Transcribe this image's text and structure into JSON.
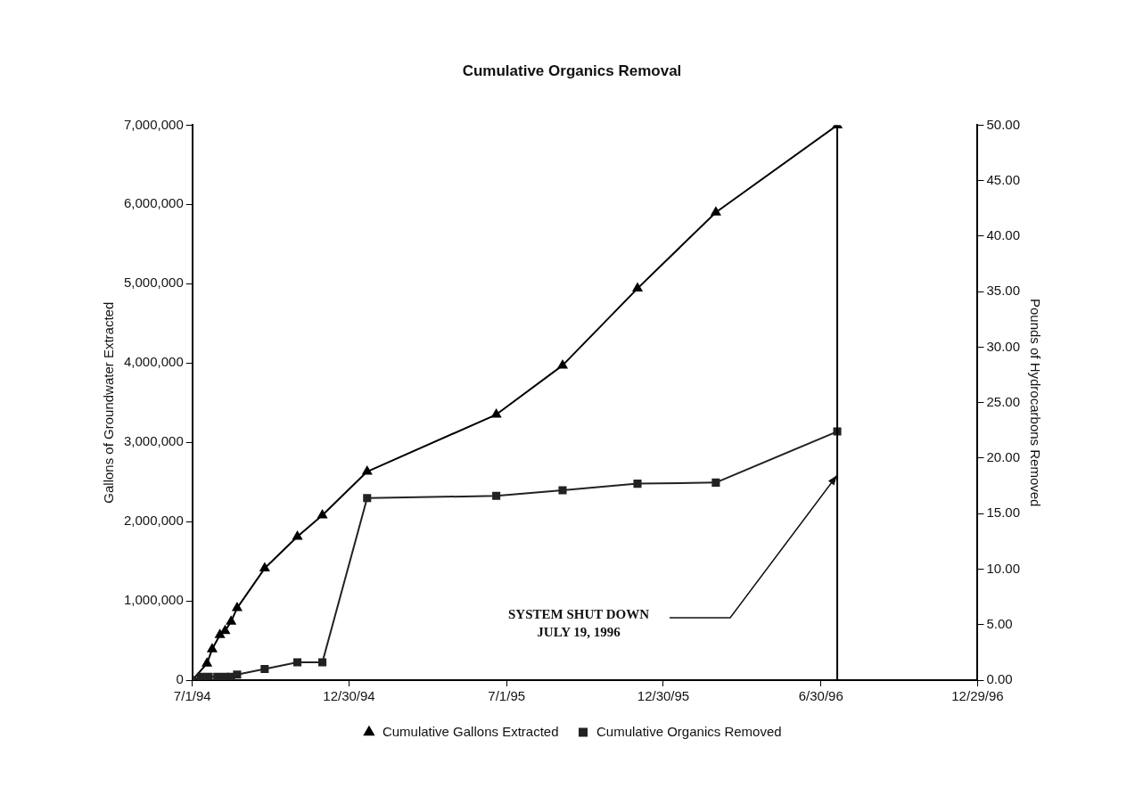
{
  "chart_data": {
    "type": "line",
    "title": "Cumulative Organics Removal",
    "ylabel": "Gallons of Groundwater Extracted",
    "y2label": "Pounds of Hydrocarbons Removed",
    "xlim": [
      "1994-07-01",
      "1996-12-29"
    ],
    "xticks": [
      {
        "value": "1994-07-01",
        "label": "7/1/94"
      },
      {
        "value": "1994-12-30",
        "label": "12/30/94"
      },
      {
        "value": "1995-07-01",
        "label": "7/1/95"
      },
      {
        "value": "1995-12-30",
        "label": "12/30/95"
      },
      {
        "value": "1996-06-30",
        "label": "6/30/96"
      },
      {
        "value": "1996-12-29",
        "label": "12/29/96"
      }
    ],
    "ylim": [
      0,
      7000000
    ],
    "yticks": [
      {
        "value": 0,
        "label": "0"
      },
      {
        "value": 1000000,
        "label": "1,000,000"
      },
      {
        "value": 2000000,
        "label": "2,000,000"
      },
      {
        "value": 3000000,
        "label": "3,000,000"
      },
      {
        "value": 4000000,
        "label": "4,000,000"
      },
      {
        "value": 5000000,
        "label": "5,000,000"
      },
      {
        "value": 6000000,
        "label": "6,000,000"
      },
      {
        "value": 7000000,
        "label": "7,000,000"
      }
    ],
    "y2lim": [
      0,
      50
    ],
    "y2ticks": [
      {
        "value": 0,
        "label": "0.00"
      },
      {
        "value": 5,
        "label": "5.00"
      },
      {
        "value": 10,
        "label": "10.00"
      },
      {
        "value": 15,
        "label": "15.00"
      },
      {
        "value": 20,
        "label": "20.00"
      },
      {
        "value": 25,
        "label": "25.00"
      },
      {
        "value": 30,
        "label": "30.00"
      },
      {
        "value": 35,
        "label": "35.00"
      },
      {
        "value": 40,
        "label": "40.00"
      },
      {
        "value": 45,
        "label": "45.00"
      },
      {
        "value": 50,
        "label": "50.00"
      }
    ],
    "series": [
      {
        "name": "Cumulative Gallons Extracted",
        "color": "#000000",
        "marker": "triangle",
        "x": [
          "1994-07-01",
          "1994-07-18",
          "1994-07-24",
          "1994-08-02",
          "1994-08-08",
          "1994-08-15",
          "1994-08-22",
          "1994-09-23",
          "1994-10-31",
          "1994-11-29",
          "1995-01-20",
          "1995-06-19",
          "1995-09-04",
          "1995-11-30",
          "1996-02-29",
          "1996-07-19"
        ],
        "values": [
          0,
          210000,
          390000,
          570000,
          620000,
          740000,
          910000,
          1410000,
          1810000,
          2080000,
          2630000,
          3350000,
          3970000,
          4940000,
          5900000,
          7000000
        ]
      },
      {
        "name": "Cumulative Organics Removed",
        "marker": "square",
        "axis": "y2",
        "color": "#222222",
        "x": [
          "1994-07-01",
          "1994-07-11",
          "1994-07-20",
          "1994-07-30",
          "1994-08-08",
          "1994-08-15",
          "1994-08-22",
          "1994-09-23",
          "1994-10-31",
          "1994-11-29",
          "1995-01-20",
          "1995-06-19",
          "1995-09-04",
          "1995-11-30",
          "1996-02-29",
          "1996-07-19"
        ],
        "values": [
          0,
          0.3,
          0.3,
          0.3,
          0.3,
          0.3,
          0.5,
          1.0,
          1.6,
          1.6,
          16.4,
          16.6,
          17.1,
          17.7,
          17.8,
          22.4
        ]
      }
    ],
    "ref_lines": [
      {
        "axis": "x",
        "value": "1996-07-19",
        "color": "#000000"
      }
    ],
    "annotations": [
      "SYSTEM SHUT DOWN\nJULY 19, 1996"
    ],
    "legend": "bottom",
    "grid": false
  }
}
